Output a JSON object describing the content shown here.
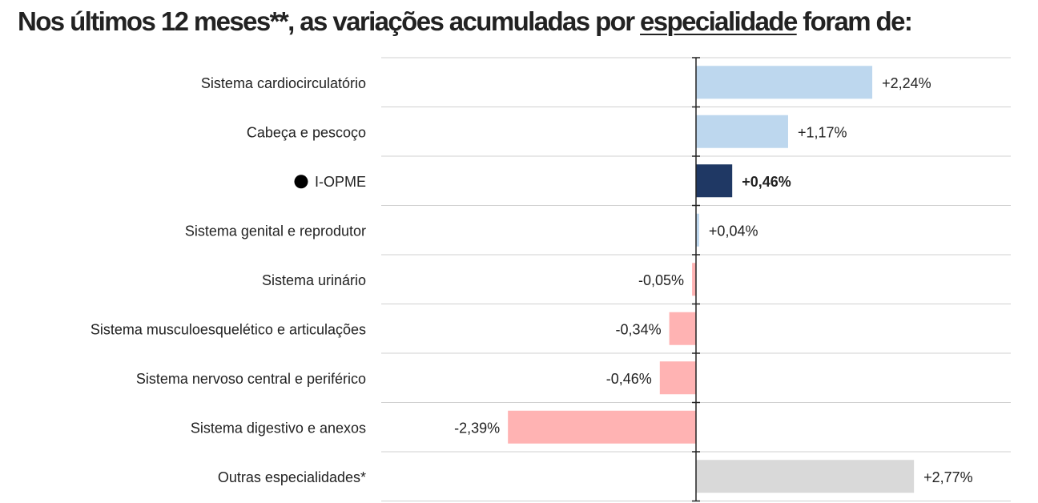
{
  "title": {
    "part1": "Nos últimos 12 meses**, as variações acumuladas por ",
    "underlined": "especialidade",
    "part2": " foram de:"
  },
  "chart_data": {
    "type": "bar",
    "orientation": "horizontal",
    "categories": [
      "Sistema cardiocirculatório",
      "Cabeça e pescoço",
      "I-OPME",
      "Sistema genital e reprodutor",
      "Sistema urinário",
      "Sistema musculoesquelético e articulações",
      "Sistema nervoso central e periférico",
      "Sistema digestivo e anexos",
      "Outras especialidades*"
    ],
    "values": [
      2.24,
      1.17,
      0.46,
      0.04,
      -0.05,
      -0.34,
      -0.46,
      -2.39,
      2.77
    ],
    "value_labels": [
      "+2,24%",
      "+1,17%",
      "+0,46%",
      "+0,04%",
      "-0,05%",
      "-0,34%",
      "-0,46%",
      "-2,39%",
      "+2,77%"
    ],
    "highlight_index": 2,
    "colors": {
      "positive": "#bdd7ee",
      "negative": "#ffb3b3",
      "highlight": "#1f3864",
      "other": "#d9d9d9",
      "axis": "#222222",
      "grid": "#d0d0d0"
    },
    "xlim": [
      -4,
      4
    ],
    "grid": "horizontal separators"
  }
}
